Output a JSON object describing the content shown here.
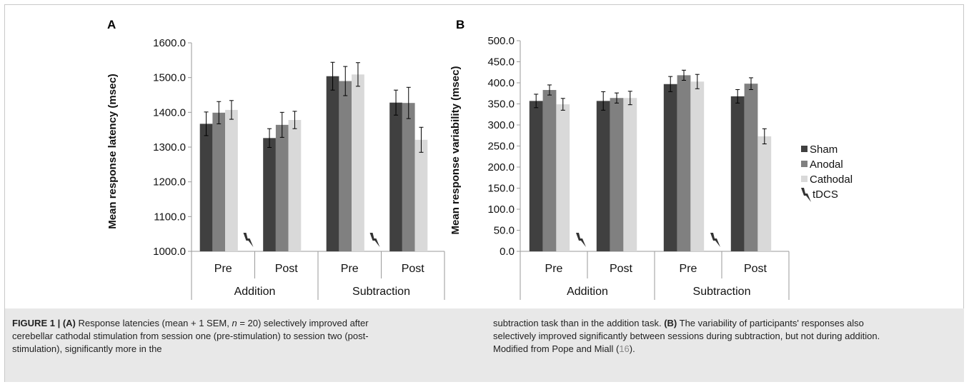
{
  "figure": {
    "caption": {
      "left_parts": [
        {
          "text": "FIGURE 1 | (A)",
          "bold": true
        },
        {
          "text": " Response latencies (mean + 1 SEM, ",
          "bold": false
        },
        {
          "text": "n",
          "bold": false,
          "italic": true
        },
        {
          "text": " = 20) selectively improved after cerebellar cathodal stimulation from session one (pre-stimulation) to session two (post-stimulation), significantly more in the",
          "bold": false
        }
      ],
      "right_parts": [
        {
          "text": "subtraction task than in the addition task. ",
          "bold": false
        },
        {
          "text": "(B)",
          "bold": true
        },
        {
          "text": " The variability of participants' responses also selectively improved significantly between sessions during subtraction, but not during addition. Modified from Pope and Miall (",
          "bold": false
        },
        {
          "text": "16",
          "bold": false,
          "ref": true
        },
        {
          "text": ").",
          "bold": false
        }
      ]
    },
    "legend": {
      "items": [
        {
          "name": "Sham",
          "color": "#404040"
        },
        {
          "name": "Anodal",
          "color": "#808080"
        },
        {
          "name": "Cathodal",
          "color": "#d9d9d9"
        },
        {
          "name": "tDCS",
          "icon": "lightning-bolt-icon",
          "color": "#333333"
        }
      ]
    }
  },
  "chart_data": [
    {
      "panel": "A",
      "type": "bar",
      "ylabel": "Mean response latency (msec)",
      "ylim": [
        1000,
        1600
      ],
      "yticks": [
        "1000.0",
        "1100.0",
        "1200.0",
        "1300.0",
        "1400.0",
        "1500.0",
        "1600.0"
      ],
      "ytick_values": [
        1000,
        1100,
        1200,
        1300,
        1400,
        1500,
        1600
      ],
      "groups": [
        "Addition",
        "Subtraction"
      ],
      "categories": [
        "Pre",
        "Post",
        "Pre",
        "Post"
      ],
      "stimulation_marker": "tDCS",
      "series": [
        {
          "name": "Sham",
          "values": [
            1367,
            1326,
            1504,
            1428
          ],
          "errors": [
            34,
            27,
            40,
            36
          ]
        },
        {
          "name": "Anodal",
          "values": [
            1399,
            1364,
            1490,
            1427
          ],
          "errors": [
            32,
            36,
            42,
            45
          ]
        },
        {
          "name": "Cathodal",
          "values": [
            1407,
            1378,
            1509,
            1321
          ],
          "errors": [
            27,
            25,
            34,
            36
          ]
        }
      ],
      "grid": false
    },
    {
      "panel": "B",
      "type": "bar",
      "ylabel": "Mean response variability (msec)",
      "ylim": [
        0,
        500
      ],
      "yticks": [
        "0.0",
        "50.0",
        "100.0",
        "150.0",
        "200.0",
        "250.0",
        "300.0",
        "350.0",
        "400.0",
        "450.0",
        "500.0"
      ],
      "ytick_values": [
        0,
        50,
        100,
        150,
        200,
        250,
        300,
        350,
        400,
        450,
        500
      ],
      "groups": [
        "Addition",
        "Subtraction"
      ],
      "categories": [
        "Pre",
        "Post",
        "Pre",
        "Post"
      ],
      "stimulation_marker": "tDCS",
      "series": [
        {
          "name": "Sham",
          "values": [
            357,
            357,
            397,
            368
          ],
          "errors": [
            16,
            22,
            18,
            16
          ]
        },
        {
          "name": "Anodal",
          "values": [
            383,
            364,
            418,
            398
          ],
          "errors": [
            12,
            12,
            12,
            14
          ]
        },
        {
          "name": "Cathodal",
          "values": [
            349,
            364,
            403,
            273
          ],
          "errors": [
            14,
            16,
            17,
            18
          ]
        }
      ],
      "grid": false
    }
  ]
}
